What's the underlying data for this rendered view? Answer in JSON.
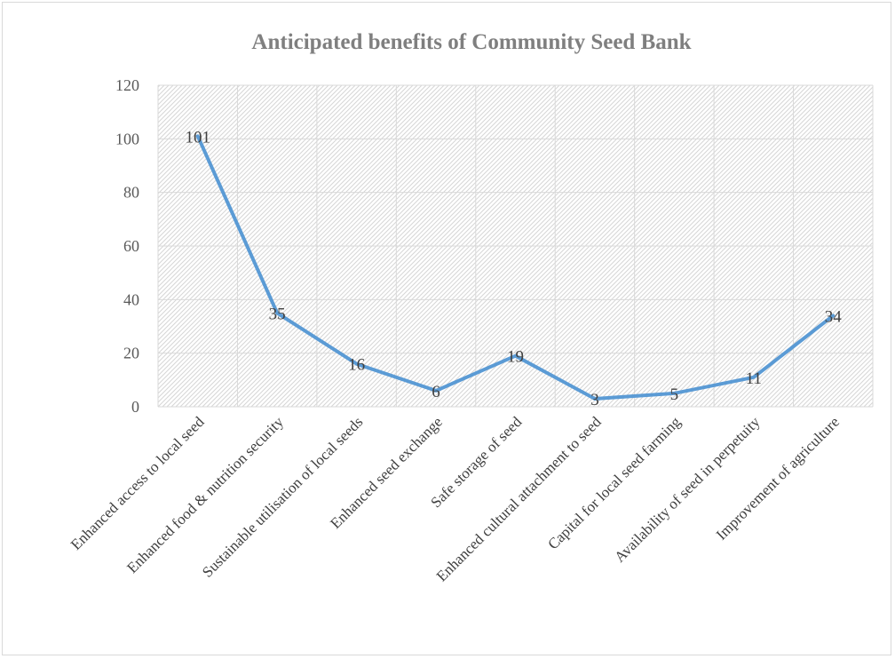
{
  "chart_data": {
    "type": "line",
    "title": "Anticipated benefits of  Community Seed Bank",
    "xlabel": "",
    "ylabel": "",
    "categories": [
      "Enhanced access to local seed",
      "Enhanced food & nutrition security",
      "Sustainable utilisation of local seeds",
      "Enhanced seed exchange",
      "Safe storage of seed",
      "Enhanced cultural attachment to seed",
      "Capital for local seed farming",
      "Availability of seed in perpetuity",
      "Improvement of agriculture"
    ],
    "values": [
      101,
      35,
      16,
      6,
      19,
      3,
      5,
      11,
      34
    ],
    "ylim": [
      0,
      120
    ],
    "yticks": [
      0,
      20,
      40,
      60,
      80,
      100,
      120
    ],
    "grid": true,
    "legend": "none",
    "data_labels": true,
    "colors": {
      "line": "#5b9bd5",
      "grid": "#d9d9d9",
      "title": "#7f7f7f",
      "plot_pattern": "#d9d9d9"
    }
  }
}
